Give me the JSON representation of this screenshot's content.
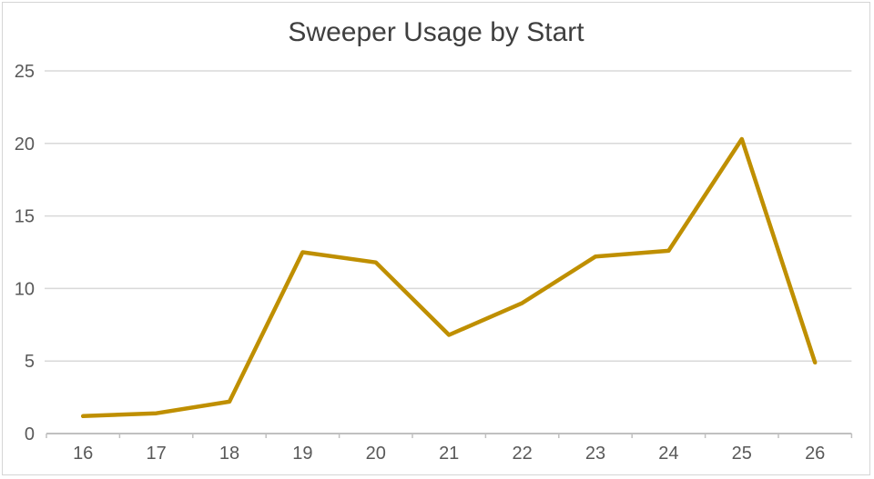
{
  "chart_data": {
    "type": "line",
    "title": "Sweeper Usage by Start",
    "categories": [
      16,
      17,
      18,
      19,
      20,
      21,
      22,
      23,
      24,
      25,
      26
    ],
    "series": [
      {
        "name": "Sweeper Usage",
        "values": [
          1.2,
          1.4,
          2.2,
          12.5,
          11.8,
          6.8,
          9.0,
          12.2,
          12.6,
          20.3,
          4.9
        ]
      }
    ],
    "xlabel": "",
    "ylabel": "",
    "ylim": [
      0,
      25
    ],
    "yticks": [
      0,
      5,
      10,
      15,
      20,
      25
    ],
    "ytick_step": 5,
    "grid": "horizontal-only",
    "legend_position": "none",
    "x_axis_tick_style": "outside-at-category-boundaries",
    "colors": {
      "series_line": "#BF8F00",
      "gridline": "#D9D9D9",
      "axis_line": "#C0C0C0",
      "tick_label": "#595959",
      "title": "#3F3F3F",
      "background": "#FFFFFF",
      "frame_border": "#D5D5D5"
    }
  }
}
